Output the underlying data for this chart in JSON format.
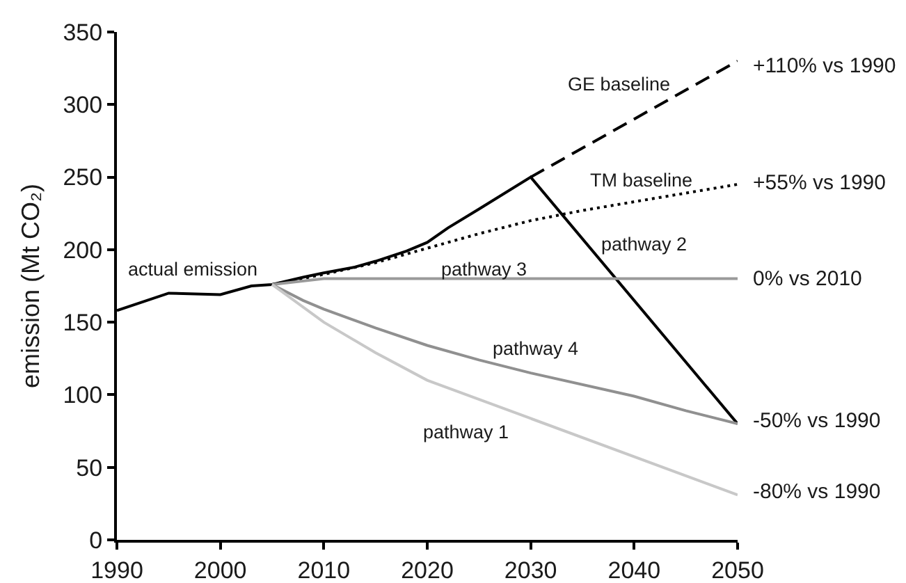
{
  "chart_data": {
    "type": "line",
    "ylabel": "emission (Mt CO₂)",
    "xlim": [
      1990,
      2050
    ],
    "xticks": [
      1990,
      2000,
      2010,
      2020,
      2030,
      2040,
      2050
    ],
    "ylim": [
      0,
      350
    ],
    "yticks": [
      0,
      50,
      100,
      150,
      200,
      250,
      300,
      350
    ],
    "series": [
      {
        "color": "#000000",
        "line_style": "solid",
        "x": [
          1990,
          1995,
          2000,
          2003,
          2005,
          2008,
          2010,
          2013,
          2015,
          2018,
          2020,
          2022,
          2025,
          2030,
          2050
        ],
        "values": [
          158,
          170,
          169,
          175,
          176,
          181,
          184,
          188,
          192,
          199,
          205,
          215,
          228,
          250,
          80
        ]
      },
      {
        "color": "#000000",
        "line_style": "dashed",
        "x": [
          2030,
          2050
        ],
        "values": [
          250,
          330
        ]
      },
      {
        "color": "#000000",
        "line_style": "dotted",
        "x": [
          2005,
          2010,
          2015,
          2020,
          2025,
          2030,
          2035,
          2040,
          2045,
          2050
        ],
        "values": [
          176,
          183,
          191,
          201,
          211,
          220,
          227,
          233,
          239,
          245
        ]
      },
      {
        "color": "#9a9a9a",
        "line_style": "solid",
        "x": [
          2005,
          2010,
          2050
        ],
        "values": [
          176,
          180,
          180
        ]
      },
      {
        "color": "#909090",
        "line_style": "solid",
        "x": [
          2005,
          2008,
          2010,
          2015,
          2020,
          2025,
          2030,
          2040,
          2045,
          2050
        ],
        "values": [
          176,
          165,
          159,
          146,
          134,
          124,
          115,
          99,
          89,
          80
        ]
      },
      {
        "color": "#c8c8c8",
        "line_style": "solid",
        "x": [
          2005,
          2010,
          2015,
          2020,
          2050
        ],
        "values": [
          176,
          150,
          129,
          110,
          31
        ]
      }
    ],
    "annotations": [
      "actual emission",
      "pathway 3",
      "GE baseline",
      "TM baseline",
      "pathway 2",
      "pathway 4",
      "pathway 1",
      "+110% vs 1990",
      "+55% vs 1990",
      "0% vs 2010",
      "-50% vs 1990",
      "-80% vs 1990"
    ]
  }
}
